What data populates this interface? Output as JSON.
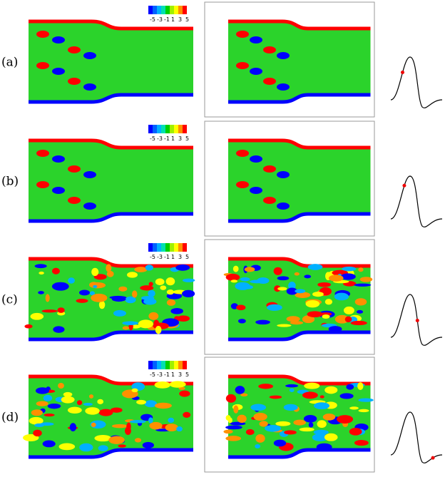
{
  "rows": [
    {
      "label": "(a)"
    },
    {
      "label": "(b)"
    },
    {
      "label": "(c)"
    },
    {
      "label": "(d)"
    }
  ],
  "colorbar": {
    "ticks": [
      -5,
      -3,
      -1,
      1,
      3,
      5
    ]
  }
}
